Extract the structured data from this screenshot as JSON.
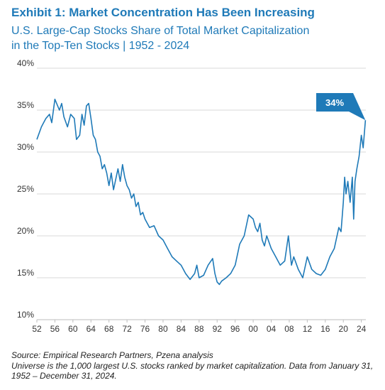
{
  "header": {
    "title": "Exhibit 1: Market Concentration Has Been Increasing",
    "subtitle_line1": "U.S. Large-Cap Stocks Share of Total Market Capitalization",
    "subtitle_line2": "in the Top-Ten Stocks | 1952 - 2024"
  },
  "footer": {
    "source": "Source: Empirical Research Partners, Pzena analysis",
    "note": "Universe is the 1,000 largest U.S. stocks ranked by market capitalization. Data from January 31, 1952 – December 31, 2024."
  },
  "colors": {
    "accent": "#1f7ab8",
    "line": "#1f7ab8",
    "grid": "#d9d9d9"
  },
  "chart_data": {
    "type": "line",
    "title": "",
    "xlabel": "",
    "ylabel": "",
    "xlim": [
      1952,
      2025
    ],
    "ylim": [
      10,
      40
    ],
    "grid": true,
    "yticks": [
      {
        "value": 10,
        "label": "10%"
      },
      {
        "value": 15,
        "label": "15%"
      },
      {
        "value": 20,
        "label": "20%"
      },
      {
        "value": 25,
        "label": "25%"
      },
      {
        "value": 30,
        "label": "30%"
      },
      {
        "value": 35,
        "label": "35%"
      },
      {
        "value": 40,
        "label": "40%"
      }
    ],
    "xticks": [
      {
        "value": 1952,
        "label": "52"
      },
      {
        "value": 1956,
        "label": "56"
      },
      {
        "value": 1960,
        "label": "60"
      },
      {
        "value": 1964,
        "label": "64"
      },
      {
        "value": 1968,
        "label": "68"
      },
      {
        "value": 1972,
        "label": "72"
      },
      {
        "value": 1976,
        "label": "76"
      },
      {
        "value": 1980,
        "label": "80"
      },
      {
        "value": 1984,
        "label": "84"
      },
      {
        "value": 1988,
        "label": "88"
      },
      {
        "value": 1992,
        "label": "92"
      },
      {
        "value": 1996,
        "label": "96"
      },
      {
        "value": 2000,
        "label": "00"
      },
      {
        "value": 2004,
        "label": "04"
      },
      {
        "value": 2008,
        "label": "08"
      },
      {
        "value": 2012,
        "label": "12"
      },
      {
        "value": 2016,
        "label": "16"
      },
      {
        "value": 2020,
        "label": "20"
      },
      {
        "value": 2024,
        "label": "24"
      }
    ],
    "annotation": {
      "text": "34%",
      "x": 2024.9,
      "y": 33.8
    },
    "series": [
      {
        "x": [
          1952,
          1953,
          1953.5,
          1954,
          1954.8,
          1955.3,
          1956,
          1957,
          1957.5,
          1958,
          1958.8,
          1959.5,
          1960.3,
          1960.8,
          1961.5,
          1962,
          1962.5,
          1963,
          1963.5,
          1964,
          1964.5,
          1965,
          1965.5,
          1966,
          1966.5,
          1967,
          1967.5,
          1968,
          1968.5,
          1969,
          1970,
          1970.5,
          1971,
          1971.5,
          1972,
          1972.5,
          1973,
          1973.5,
          1974,
          1974.5,
          1975,
          1975.5,
          1976,
          1977,
          1978,
          1979,
          1980,
          1981,
          1982,
          1983,
          1984,
          1985,
          1986,
          1987,
          1987.5,
          1988,
          1989,
          1990,
          1991,
          1991.5,
          1992,
          1992.5,
          1993,
          1994,
          1995,
          1996,
          1997,
          1998,
          1999,
          2000,
          2000.5,
          2001,
          2001.5,
          2002,
          2002.5,
          2003,
          2004,
          2005,
          2006,
          2007,
          2007.8,
          2008.5,
          2009,
          2010,
          2011,
          2012,
          2013,
          2014,
          2015,
          2016,
          2017,
          2018,
          2019,
          2019.5,
          2020,
          2020.3,
          2020.6,
          2021,
          2021.5,
          2022,
          2022.3,
          2022.6,
          2023,
          2023.5,
          2024,
          2024.4,
          2024.9
        ],
        "y": [
          31.5,
          33,
          33.5,
          34,
          34.5,
          33.5,
          36.3,
          35,
          35.8,
          34.2,
          33,
          34.5,
          34,
          31.5,
          32,
          34.5,
          33.2,
          35.5,
          35.8,
          34,
          32,
          31.5,
          30,
          29.5,
          28,
          28.5,
          27.5,
          26,
          27.5,
          25.5,
          28,
          26.5,
          28.5,
          27,
          26,
          25.5,
          24.5,
          25,
          23.5,
          24,
          22.5,
          22.8,
          22,
          21,
          21.2,
          20,
          19.5,
          18.5,
          17.5,
          17,
          16.5,
          15.5,
          14.8,
          15.5,
          16.5,
          15,
          15.3,
          16.5,
          17.3,
          15.5,
          14.5,
          14.2,
          14.6,
          15,
          15.5,
          16.5,
          19,
          20,
          22.5,
          22,
          21,
          20.5,
          21.5,
          19.5,
          18.8,
          20,
          18.5,
          17.5,
          16.5,
          17,
          20,
          16.5,
          17.5,
          16,
          15,
          17.5,
          16,
          15.5,
          15.3,
          16,
          17.5,
          18.5,
          21,
          20.5,
          24,
          27,
          25,
          26.5,
          24,
          27,
          22,
          26.5,
          28,
          29.5,
          32,
          30.5,
          33.8
        ]
      }
    ]
  }
}
